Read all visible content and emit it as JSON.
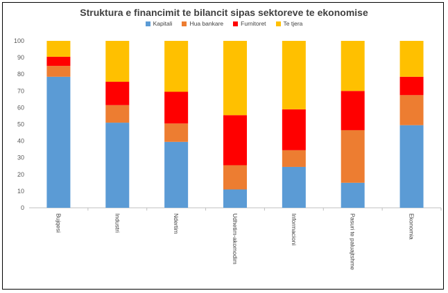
{
  "chart_data": {
    "type": "bar",
    "stacked": true,
    "title": "Struktura e financimit te bilancit sipas sektoreve te ekonomise",
    "categories": [
      "Bujqesi",
      "Industri",
      "Ndertim",
      "Udhetim-akomodim",
      "Informacioni",
      "Pasuri te paluajtshme",
      "Ekonomia"
    ],
    "series": [
      {
        "name": "Kapitali",
        "color": "#5b9bd5",
        "values": [
          78.5,
          51,
          39.5,
          11,
          24.5,
          15,
          49.5
        ]
      },
      {
        "name": "Hua bankare",
        "color": "#ed7d31",
        "values": [
          6.5,
          10.5,
          11,
          14.5,
          10,
          31.5,
          18
        ]
      },
      {
        "name": "Furnitoret",
        "color": "#ff0000",
        "values": [
          5.5,
          14,
          19,
          30,
          24.5,
          23.5,
          11
        ]
      },
      {
        "name": "Te tjera",
        "color": "#ffc000",
        "values": [
          9.5,
          24.5,
          30.5,
          44.5,
          41,
          30,
          21.5
        ]
      }
    ],
    "yticks": [
      "0",
      "10",
      "20",
      "30",
      "40",
      "50",
      "60",
      "70",
      "80",
      "90",
      "100"
    ],
    "ylim": [
      0,
      100
    ],
    "grid": false,
    "legend": "top"
  }
}
